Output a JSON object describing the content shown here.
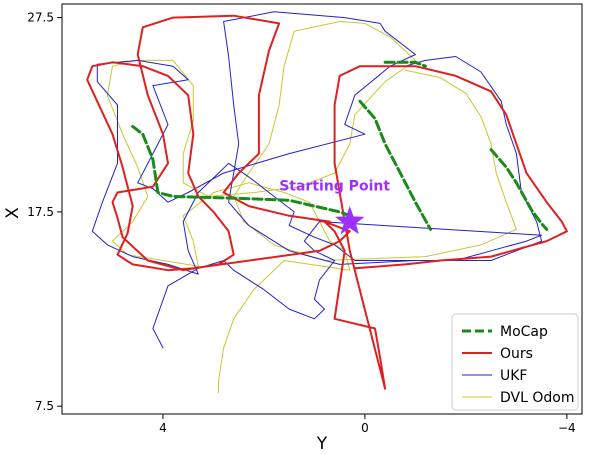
{
  "chart_data": {
    "type": "line",
    "title": "",
    "xlabel": "Y",
    "ylabel": "X",
    "x_axis_inverted": true,
    "xlim": [
      6.0,
      -4.3
    ],
    "ylim": [
      7.1,
      28.2
    ],
    "x_ticks": [
      4,
      0,
      -4
    ],
    "x_tick_labels": [
      "4",
      "0",
      "−4"
    ],
    "y_ticks": [
      7.5,
      17.5,
      27.5
    ],
    "y_tick_labels": [
      "7.5",
      "17.5",
      "27.5"
    ],
    "grid": false,
    "legend_position": "bottom-right",
    "annotation": {
      "text": "Starting Point",
      "x": 0.6,
      "y": 18.6
    },
    "start_marker": {
      "shape": "star",
      "color": "#9b30ff",
      "x": 0.3,
      "y": 17.0
    },
    "series": [
      {
        "name": "MoCap",
        "color": "#1a8a1a",
        "style": "dashed",
        "points": [
          [
            4.6,
            21.9
          ],
          [
            4.4,
            21.5
          ],
          [
            4.2,
            20.2
          ],
          [
            4.1,
            18.5
          ],
          [
            3.8,
            18.3
          ],
          [
            2.5,
            18.2
          ],
          [
            1.5,
            18.1
          ],
          [
            1.0,
            17.8
          ],
          [
            0.5,
            17.5
          ],
          [
            0.3,
            17.3
          ],
          [
            -0.4,
            25.2
          ],
          [
            -1.0,
            25.2
          ],
          [
            -1.2,
            25.0
          ],
          [
            0.1,
            23.2
          ],
          [
            -0.2,
            22.3
          ],
          [
            -0.4,
            21.0
          ],
          [
            -0.7,
            19.5
          ],
          [
            -1.0,
            18.0
          ],
          [
            -1.3,
            16.6
          ],
          [
            -2.5,
            20.7
          ],
          [
            -2.8,
            19.8
          ],
          [
            -3.0,
            19.0
          ],
          [
            -3.3,
            17.6
          ],
          [
            -3.5,
            16.9
          ],
          [
            -3.6,
            16.6
          ]
        ],
        "segments": [
          [
            0,
            10
          ],
          [
            10,
            13
          ],
          [
            13,
            19
          ],
          [
            19,
            25
          ]
        ]
      },
      {
        "name": "Ours",
        "color": "#e02020",
        "style": "solid",
        "points": [
          [
            0.7,
            17.0
          ],
          [
            1.5,
            17.3
          ],
          [
            2.3,
            17.8
          ],
          [
            2.8,
            18.5
          ],
          [
            2.5,
            19.5
          ],
          [
            2.1,
            20.5
          ],
          [
            2.1,
            23.5
          ],
          [
            1.9,
            25.8
          ],
          [
            1.7,
            27.2
          ],
          [
            2.6,
            27.6
          ],
          [
            3.8,
            27.5
          ],
          [
            4.4,
            27.0
          ],
          [
            4.5,
            25.6
          ],
          [
            4.3,
            23.5
          ],
          [
            4.0,
            21.5
          ],
          [
            3.9,
            20.0
          ],
          [
            4.2,
            18.8
          ],
          [
            4.9,
            18.5
          ],
          [
            5.0,
            18.0
          ],
          [
            4.9,
            17.2
          ],
          [
            4.8,
            16.2
          ],
          [
            4.3,
            15.0
          ],
          [
            3.6,
            14.5
          ],
          [
            2.9,
            14.8
          ],
          [
            2.6,
            15.3
          ],
          [
            2.7,
            16.5
          ],
          [
            3.0,
            17.5
          ],
          [
            3.3,
            18.3
          ],
          [
            3.5,
            19.5
          ],
          [
            3.4,
            21.5
          ],
          [
            3.5,
            23.5
          ],
          [
            3.9,
            24.5
          ],
          [
            4.4,
            25.0
          ],
          [
            5.0,
            25.2
          ],
          [
            5.4,
            25.0
          ],
          [
            5.5,
            24.3
          ],
          [
            5.0,
            21.5
          ],
          [
            4.8,
            19.8
          ],
          [
            4.6,
            17.8
          ],
          [
            4.7,
            16.4
          ],
          [
            4.9,
            15.3
          ],
          [
            4.6,
            14.8
          ],
          [
            3.9,
            14.5
          ],
          [
            3.4,
            14.6
          ],
          [
            0.9,
            15.5
          ],
          [
            0.5,
            16.0
          ],
          [
            0.3,
            16.5
          ],
          [
            0.7,
            16.9
          ],
          [
            0.8,
            17.0
          ],
          [
            0.6,
            16.5
          ],
          [
            0.4,
            15.5
          ],
          [
            0.6,
            12.0
          ],
          [
            -0.2,
            11.5
          ],
          [
            -0.3,
            10.0
          ],
          [
            -0.4,
            8.4
          ],
          [
            0.3,
            15.5
          ],
          [
            0.6,
            20.0
          ],
          [
            0.6,
            23.0
          ],
          [
            0.5,
            24.5
          ],
          [
            0.1,
            25.0
          ],
          [
            -1.0,
            25.0
          ],
          [
            -1.8,
            24.5
          ],
          [
            -2.5,
            23.7
          ],
          [
            -2.8,
            22.5
          ],
          [
            -3.0,
            21.0
          ],
          [
            -3.2,
            19.5
          ],
          [
            -3.6,
            18.0
          ],
          [
            -3.9,
            17.0
          ],
          [
            -4.0,
            16.5
          ],
          [
            -3.6,
            16.0
          ],
          [
            -2.5,
            15.2
          ],
          [
            -1.5,
            15.0
          ],
          [
            -0.8,
            14.8
          ],
          [
            0.2,
            14.6
          ]
        ]
      },
      {
        "name": "UKF",
        "color": "#2222cc",
        "style": "solid",
        "points": [
          [
            -0.8,
            25.0
          ],
          [
            -1.2,
            25.3
          ],
          [
            -1.8,
            25.5
          ],
          [
            -2.3,
            24.7
          ],
          [
            -2.7,
            23.2
          ],
          [
            -2.8,
            22.0
          ],
          [
            -3.0,
            20.5
          ],
          [
            -3.1,
            18.5
          ],
          [
            -3.4,
            17.0
          ],
          [
            -3.5,
            16.0
          ],
          [
            -2.5,
            15.0
          ],
          [
            -1.0,
            15.0
          ],
          [
            0.5,
            14.8
          ],
          [
            1.5,
            15.5
          ],
          [
            2.3,
            16.8
          ],
          [
            2.7,
            18.0
          ],
          [
            2.6,
            19.5
          ],
          [
            2.5,
            21.0
          ],
          [
            2.6,
            23.0
          ],
          [
            2.7,
            25.5
          ],
          [
            2.8,
            27.3
          ],
          [
            1.8,
            27.8
          ],
          [
            0.4,
            27.5
          ],
          [
            -0.3,
            27.2
          ],
          [
            -0.4,
            26.8
          ],
          [
            -1.0,
            25.6
          ],
          [
            -0.5,
            25.0
          ],
          [
            0.2,
            23.5
          ],
          [
            0.4,
            22.0
          ],
          [
            0.0,
            21.5
          ],
          [
            1.5,
            20.5
          ],
          [
            2.8,
            19.5
          ],
          [
            3.5,
            18.5
          ],
          [
            3.9,
            18.0
          ],
          [
            4.2,
            18.7
          ],
          [
            4.5,
            19.0
          ],
          [
            4.2,
            20.5
          ],
          [
            3.9,
            22.0
          ],
          [
            4.2,
            24.0
          ],
          [
            3.5,
            24.3
          ],
          [
            3.8,
            25.0
          ],
          [
            4.5,
            25.3
          ],
          [
            5.3,
            25.1
          ],
          [
            5.3,
            24.2
          ],
          [
            4.9,
            23.0
          ],
          [
            4.9,
            20.0
          ],
          [
            5.2,
            18.0
          ],
          [
            5.4,
            16.5
          ],
          [
            5.1,
            15.8
          ],
          [
            4.6,
            15.2
          ],
          [
            3.9,
            14.8
          ],
          [
            3.3,
            14.3
          ],
          [
            3.5,
            15.5
          ],
          [
            3.6,
            17.0
          ],
          [
            3.3,
            18.5
          ],
          [
            2.9,
            19.5
          ],
          [
            2.7,
            20.0
          ],
          [
            2.3,
            19.3
          ],
          [
            1.8,
            18.3
          ],
          [
            1.4,
            17.5
          ],
          [
            1.5,
            16.8
          ],
          [
            1.0,
            16.2
          ],
          [
            0.6,
            15.8
          ],
          [
            0.2,
            15.0
          ],
          [
            -0.6,
            15.0
          ],
          [
            -1.8,
            15.0
          ],
          [
            -2.5,
            15.5
          ],
          [
            -3.2,
            16.0
          ],
          [
            -3.5,
            16.3
          ],
          [
            0.9,
            17.0
          ],
          [
            1.2,
            16.0
          ],
          [
            1.0,
            15.5
          ],
          [
            0.6,
            15.0
          ],
          [
            0.9,
            14.0
          ],
          [
            1.0,
            13.0
          ],
          [
            0.8,
            12.5
          ],
          [
            1.0,
            12.0
          ],
          [
            1.5,
            12.5
          ],
          [
            2.0,
            13.5
          ],
          [
            2.6,
            14.5
          ],
          [
            2.8,
            15.0
          ],
          [
            3.3,
            14.6
          ],
          [
            3.9,
            13.7
          ],
          [
            4.2,
            11.5
          ],
          [
            4.0,
            10.5
          ]
        ]
      },
      {
        "name": "DVL Odom",
        "color": "#c8c832",
        "style": "solid",
        "points": [
          [
            -0.8,
            24.8
          ],
          [
            -1.5,
            24.4
          ],
          [
            -2.0,
            23.6
          ],
          [
            -2.3,
            22.4
          ],
          [
            -2.5,
            21.0
          ],
          [
            -2.6,
            19.5
          ],
          [
            -2.8,
            18.0
          ],
          [
            -3.0,
            16.6
          ],
          [
            -2.3,
            15.8
          ],
          [
            -1.2,
            15.2
          ],
          [
            -0.2,
            15.1
          ],
          [
            0.8,
            15.0
          ],
          [
            1.8,
            15.8
          ],
          [
            2.4,
            17.0
          ],
          [
            2.6,
            18.3
          ],
          [
            2.3,
            19.5
          ],
          [
            1.9,
            21.0
          ],
          [
            1.7,
            23.0
          ],
          [
            1.6,
            25.0
          ],
          [
            1.4,
            26.8
          ],
          [
            0.5,
            27.3
          ],
          [
            0.0,
            27.2
          ],
          [
            -0.5,
            26.5
          ],
          [
            -1.0,
            25.3
          ],
          [
            -0.4,
            24.2
          ],
          [
            0.2,
            22.5
          ],
          [
            0.3,
            21.0
          ],
          [
            0.6,
            19.5
          ],
          [
            1.3,
            18.8
          ],
          [
            2.2,
            18.5
          ],
          [
            3.1,
            18.3
          ],
          [
            3.6,
            19.0
          ],
          [
            3.6,
            20.5
          ],
          [
            3.4,
            22.2
          ],
          [
            3.4,
            24.0
          ],
          [
            3.8,
            25.3
          ],
          [
            4.5,
            25.3
          ],
          [
            5.0,
            25.0
          ],
          [
            5.1,
            23.5
          ],
          [
            4.8,
            21.5
          ],
          [
            4.5,
            19.8
          ],
          [
            4.3,
            18.3
          ],
          [
            4.6,
            17.0
          ],
          [
            5.0,
            16.0
          ],
          [
            4.7,
            15.3
          ],
          [
            4.0,
            15.0
          ],
          [
            3.3,
            14.7
          ],
          [
            3.4,
            16.0
          ],
          [
            3.6,
            17.3
          ],
          [
            3.0,
            18.5
          ],
          [
            2.3,
            19.0
          ],
          [
            1.6,
            18.5
          ],
          [
            1.1,
            18.0
          ],
          [
            0.9,
            17.0
          ],
          [
            0.7,
            16.0
          ],
          [
            0.4,
            15.5
          ],
          [
            0.3,
            14.5
          ],
          [
            1.6,
            15.0
          ],
          [
            2.2,
            13.5
          ],
          [
            2.6,
            12.0
          ],
          [
            2.8,
            10.5
          ],
          [
            2.9,
            8.8
          ],
          [
            2.9,
            8.2
          ]
        ]
      }
    ]
  }
}
